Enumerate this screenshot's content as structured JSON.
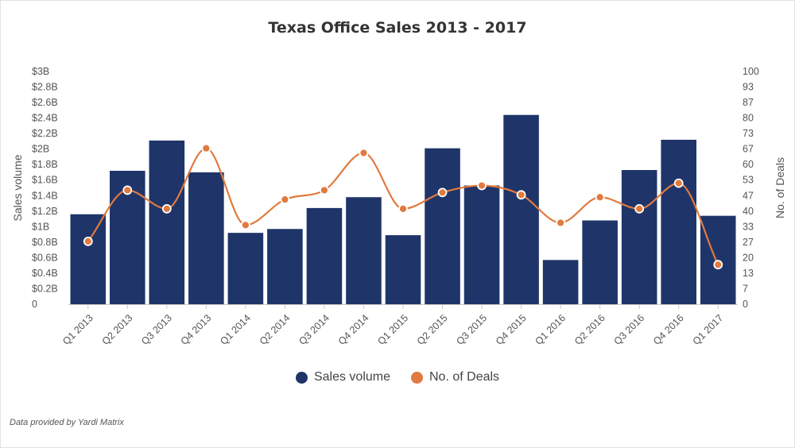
{
  "chart_data": {
    "type": "bar+line",
    "title": "Texas Office Sales 2013 - 2017",
    "categories": [
      "Q1 2013",
      "Q2 2013",
      "Q3 2013",
      "Q4 2013",
      "Q1 2014",
      "Q2 2014",
      "Q3 2014",
      "Q4 2014",
      "Q1 2015",
      "Q2 2015",
      "Q3 2015",
      "Q4 2015",
      "Q1 2016",
      "Q2 2016",
      "Q3 2016",
      "Q4 2016",
      "Q1 2017"
    ],
    "series": [
      {
        "name": "Sales volume",
        "type": "bar",
        "axis": "left",
        "color": "#1f3569",
        "values": [
          1.16,
          1.72,
          2.11,
          1.7,
          0.92,
          0.97,
          1.24,
          1.38,
          0.89,
          2.01,
          1.53,
          2.44,
          0.57,
          1.08,
          1.73,
          2.12,
          1.14
        ]
      },
      {
        "name": "No. of Deals",
        "type": "line",
        "axis": "right",
        "color": "#e07a3f",
        "values": [
          27,
          49,
          41,
          67,
          34,
          45,
          49,
          65,
          41,
          48,
          51,
          47,
          35,
          46,
          41,
          52,
          17
        ]
      }
    ],
    "left_axis": {
      "label": "Sales volume",
      "ylim": [
        0,
        3
      ],
      "ticks": [
        "0",
        "$0.2B",
        "$0.4B",
        "$0.6B",
        "$0.8B",
        "$1B",
        "$1.2B",
        "$1.4B",
        "$1.6B",
        "$1.8B",
        "$2B",
        "$2.2B",
        "$2.4B",
        "$2.6B",
        "$2.8B",
        "$3B"
      ]
    },
    "right_axis": {
      "label": "No. of Deals",
      "ylim": [
        0,
        100
      ],
      "ticks": [
        "0",
        "7",
        "13",
        "20",
        "27",
        "33",
        "40",
        "47",
        "53",
        "60",
        "67",
        "73",
        "80",
        "87",
        "93",
        "100"
      ]
    },
    "legend_position": "bottom-center",
    "grid": false
  },
  "footer": {
    "credit": "Data provided by Yardi Matrix"
  }
}
